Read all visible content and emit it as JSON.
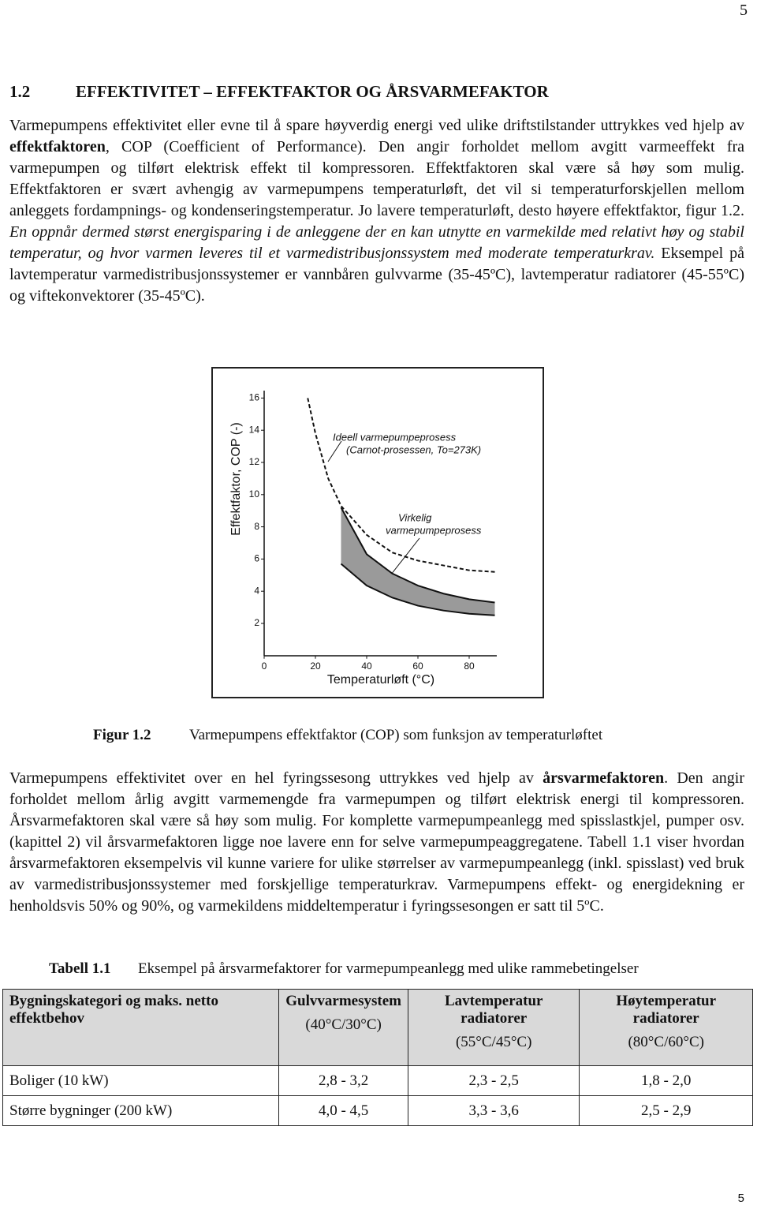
{
  "page_number": "5",
  "section": {
    "number": "1.2",
    "title": "EFFEKTIVITET – EFFEKTFAKTOR OG ÅRSVARMEFAKTOR"
  },
  "paragraphs": [
    [
      {
        "text": "Varmepumpens effektivitet eller evne til å spare høyverdig energi ved ulike driftstilstander uttrykkes ved hjelp av "
      },
      {
        "text": "effektfaktoren",
        "bold": true
      },
      {
        "text": ", COP (Coefficient of Performance). Den angir forholdet mellom avgitt varmeeffekt fra varmepumpen og tilført elektrisk effekt til kompressoren. Effektfaktoren skal være så høy som mulig. Effektfaktoren er svært avhengig av varmepumpens temperaturløft, det vil si temperaturforskjellen mellom anleggets fordampnings- og kondenseringstemperatur. Jo lavere temperaturløft, desto høyere effektfaktor, figur 1.2. "
      },
      {
        "text": "En oppnår dermed størst energisparing i de anleggene der en kan utnytte en varmekilde med relativt høy og stabil temperatur, og hvor varmen leveres til et varmedistribusjonssystem med moderate temperaturkrav.",
        "italic": true
      },
      {
        "text": " Eksempel på lavtemperatur varmedistribusjonssystemer er vannbåren gulvvarme (35-45ºC), lavtemperatur radiatorer (45-55ºC) og viftekonvektorer (35-45ºC)."
      }
    ],
    [
      {
        "text": "Varmepumpens effektivitet over en hel fyringssesong uttrykkes ved hjelp av "
      },
      {
        "text": "årsvarmefaktoren",
        "bold": true
      },
      {
        "text": ". Den angir forholdet mellom årlig avgitt varmemengde fra varmepumpen og tilført elektrisk energi til kompressoren. Årsvarmefaktoren skal være så høy som mulig. For komplette varmepumpeanlegg med spisslastkjel, pumper osv. (kapittel 2) vil årsvarmefaktoren ligge noe lavere enn for selve varmepumpeaggregatene. Tabell 1.1 viser hvordan årsvarmefaktoren eksempelvis vil kunne variere for ulike størrelser av varmepumpeanlegg (inkl. spisslast) ved bruk av varmedistribusjonssystemer med forskjellige temperaturkrav. Varmepumpens effekt- og energidekning er henholdsvis 50% og 90%, og varmekildens middeltemperatur i fyringssesongen er satt til 5ºC."
      }
    ]
  ],
  "chart_data": {
    "type": "line",
    "ylabel": "Effektfaktor, COP  (-)",
    "xlabel": "Temperaturløft (°C)",
    "annotations": [
      "Ideell varmepumpeprosess",
      "(Carnot-prosessen, To=273K)",
      "Virkelig",
      "varmepumpeprosess"
    ],
    "x": [
      17,
      20,
      25,
      30,
      40,
      50,
      60,
      70,
      80,
      90
    ],
    "series": [
      {
        "color": "#111111",
        "dash": true,
        "values": [
          16,
          13.8,
          11,
          9.3,
          7.5,
          6.4,
          5.9,
          5.6,
          5.3,
          5.2
        ]
      },
      {
        "color": "#111111",
        "values": [
          null,
          null,
          null,
          9.2,
          6.3,
          5.1,
          4.35,
          3.85,
          3.5,
          3.3
        ]
      },
      {
        "color": "#111111",
        "values": [
          null,
          null,
          null,
          5.7,
          4.35,
          3.6,
          3.1,
          2.8,
          2.6,
          2.5
        ]
      }
    ],
    "band_color": "#9a9a9a",
    "xlim": [
      0,
      90
    ],
    "ylim": [
      0,
      16.5
    ],
    "xticks": [
      0,
      20,
      40,
      60,
      80
    ],
    "yticks": [
      2,
      4,
      6,
      8,
      10,
      12,
      14,
      16
    ]
  },
  "figure_caption": {
    "label": "Figur 1.2",
    "text": "Varmepumpens effektfaktor (COP) som funksjon av temperaturløftet"
  },
  "table": {
    "label": "Tabell 1.1",
    "caption": "Eksempel på årsvarmefaktorer for varmepumpeanlegg med ulike rammebetingelser",
    "header": [
      [
        "Bygningskategori og maks. netto effektbehov"
      ],
      [
        "Gulvvarmesystem",
        "(40°C/30°C)"
      ],
      [
        "Lavtemperatur radiatorer",
        "(55°C/45°C)"
      ],
      [
        "Høytemperatur radiatorer",
        "(80°C/60°C)"
      ]
    ],
    "rows": [
      [
        "Boliger (10 kW)",
        "2,8 - 3,2",
        "2,3 - 2,5",
        "1,8 - 2,0"
      ],
      [
        "Større bygninger (200 kW)",
        "4,0 - 4,5",
        "3,3 - 3,6",
        "2,5 - 2,9"
      ]
    ]
  },
  "footer_page_number": "5"
}
